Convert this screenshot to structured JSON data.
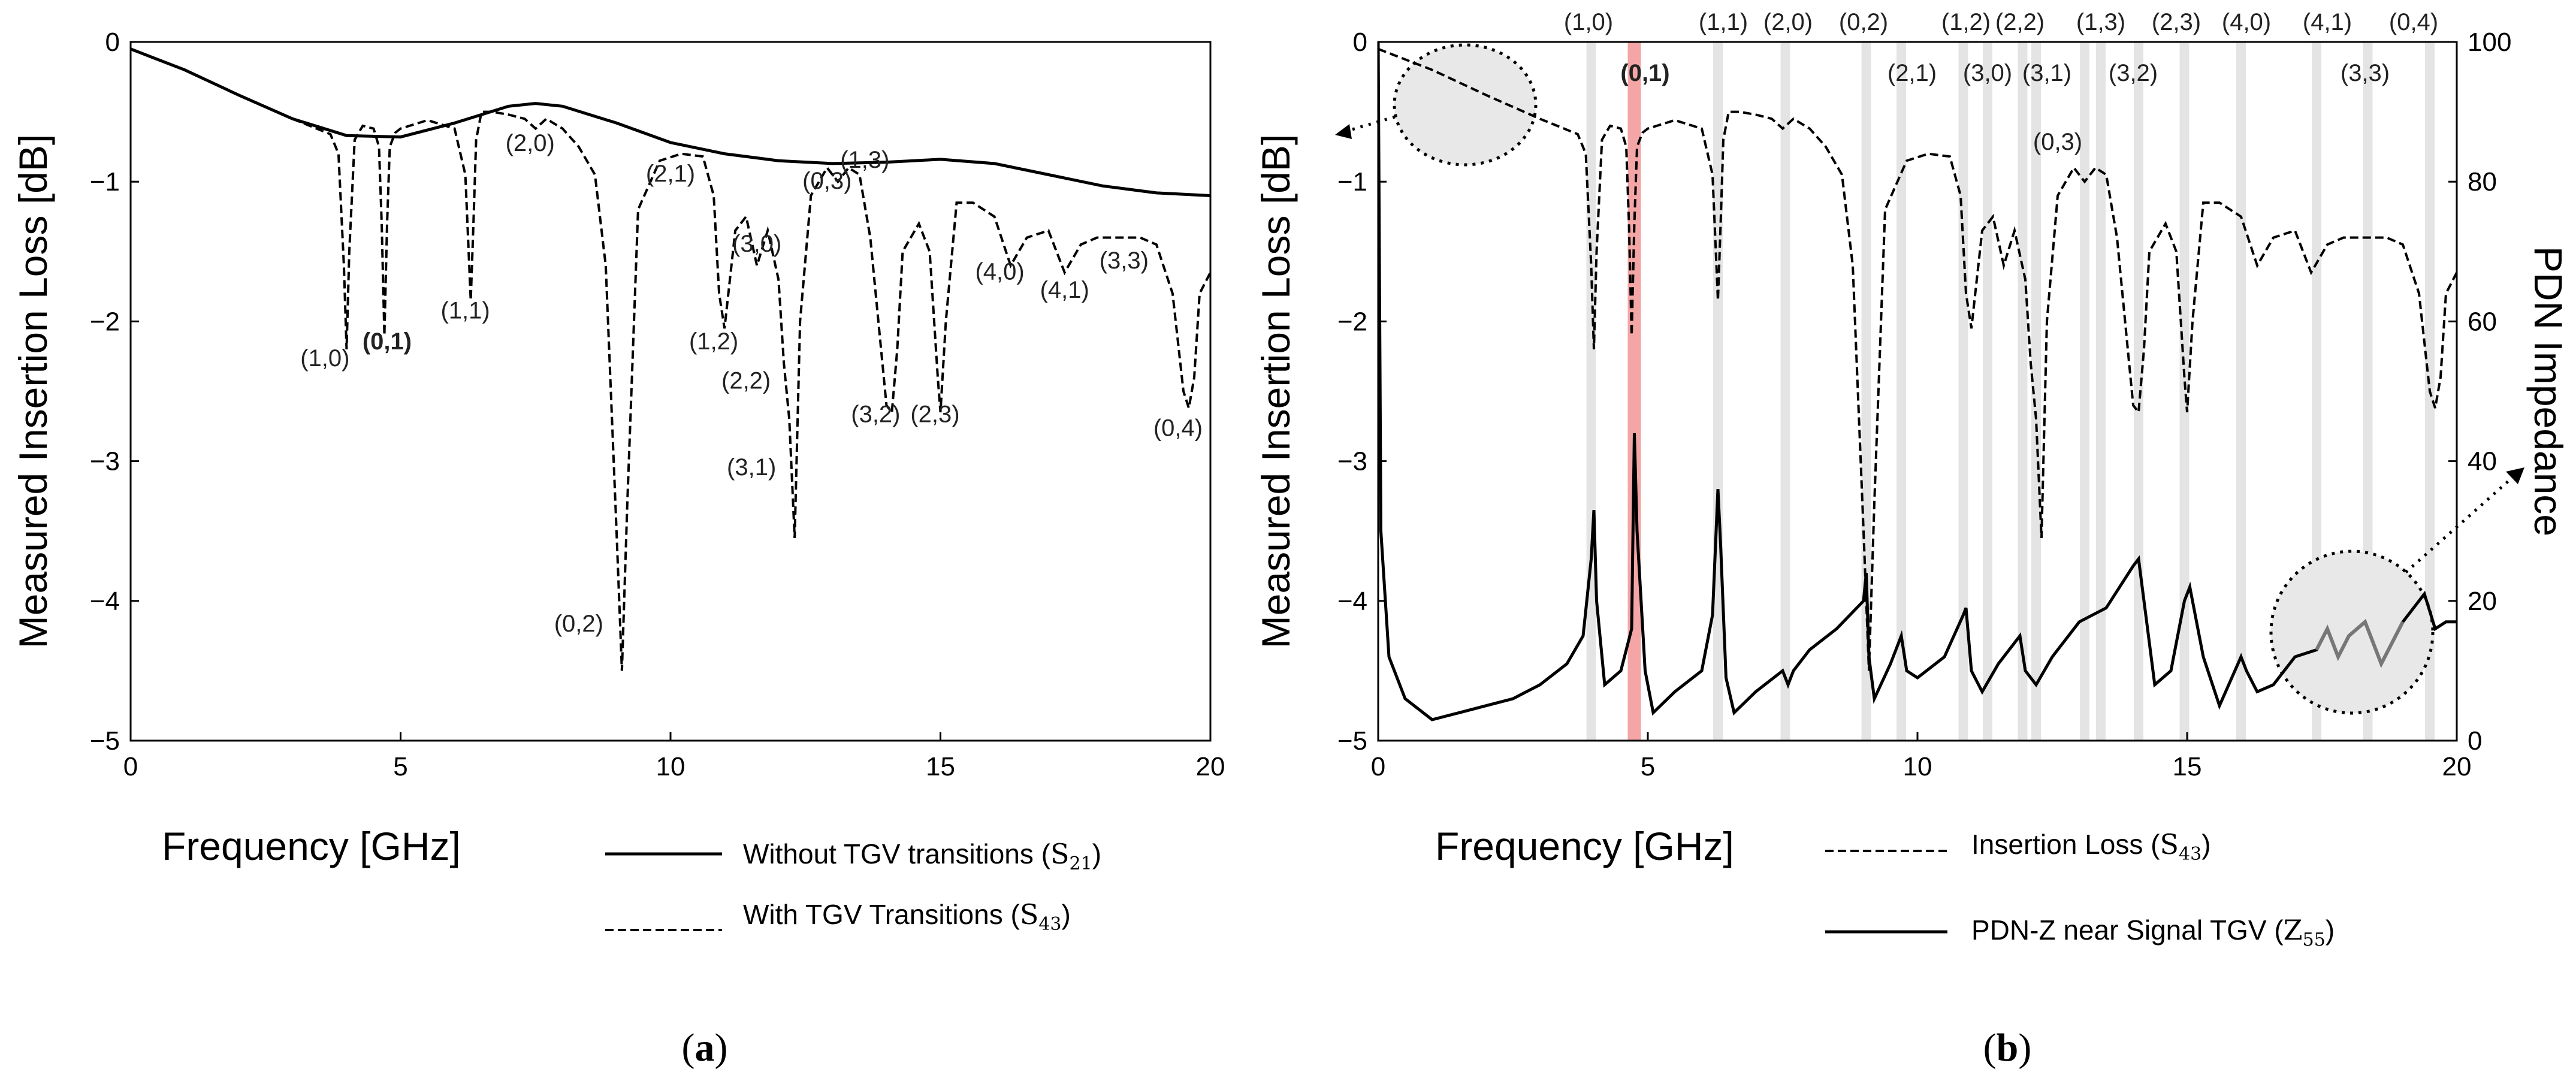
{
  "chart_data": [
    {
      "type": "line",
      "panel_caption_open": "(",
      "panel_caption_letter": "a",
      "panel_caption_close": ")",
      "xlabel": "Frequency [GHz]",
      "ylabel": "Measured Insertion Loss [dB]",
      "xlim": [
        0,
        20
      ],
      "ylim": [
        -5,
        0
      ],
      "xticks": [
        "0",
        "5",
        "10",
        "15",
        "20"
      ],
      "yticks": [
        "0",
        "−1",
        "−2",
        "−3",
        "−4",
        "−5"
      ],
      "series": [
        {
          "name": "Without TGV transitions (S21)",
          "legend_text": "Without TGV transitions (",
          "legend_sym": "S",
          "legend_sub": "21",
          "legend_close": ")",
          "style": "solid",
          "x": [
            0,
            1,
            2,
            3,
            4,
            5,
            6,
            7,
            7.5,
            8,
            9,
            10,
            11,
            12,
            13,
            14,
            15,
            16,
            17,
            18,
            19,
            20
          ],
          "y": [
            -0.05,
            -0.2,
            -0.38,
            -0.55,
            -0.67,
            -0.68,
            -0.58,
            -0.46,
            -0.44,
            -0.46,
            -0.58,
            -0.72,
            -0.8,
            -0.85,
            -0.87,
            -0.86,
            -0.84,
            -0.87,
            -0.95,
            -1.03,
            -1.08,
            -1.1
          ]
        },
        {
          "name": "With TGV Transitions (S43)",
          "legend_text": "With TGV Transitions (",
          "legend_sym": "S",
          "legend_sub": "43",
          "legend_close": ")",
          "style": "dashed",
          "x": [
            0,
            1,
            2,
            3,
            3.7,
            3.85,
            3.95,
            4.0,
            4.05,
            4.15,
            4.3,
            4.5,
            4.6,
            4.65,
            4.7,
            4.75,
            4.8,
            4.9,
            5.0,
            5.5,
            6.0,
            6.2,
            6.3,
            6.35,
            6.4,
            6.5,
            6.7,
            7.0,
            7.3,
            7.5,
            7.7,
            8.0,
            8.3,
            8.6,
            8.8,
            9.0,
            9.1,
            9.2,
            9.4,
            9.8,
            10.2,
            10.6,
            10.8,
            10.9,
            11.0,
            11.2,
            11.4,
            11.6,
            11.8,
            12.0,
            12.1,
            12.2,
            12.3,
            12.4,
            12.6,
            12.9,
            13.1,
            13.3,
            13.5,
            13.7,
            13.9,
            14.0,
            14.1,
            14.2,
            14.3,
            14.6,
            14.8,
            14.95,
            15.0,
            15.1,
            15.3,
            15.6,
            16.0,
            16.3,
            16.6,
            17.0,
            17.3,
            17.6,
            17.9,
            18.3,
            18.7,
            19.0,
            19.3,
            19.5,
            19.6,
            19.7,
            19.8,
            20.0
          ],
          "y": [
            -0.05,
            -0.2,
            -0.38,
            -0.55,
            -0.66,
            -0.8,
            -1.6,
            -2.2,
            -1.5,
            -0.7,
            -0.6,
            -0.62,
            -0.75,
            -1.3,
            -2.1,
            -1.3,
            -0.75,
            -0.65,
            -0.62,
            -0.56,
            -0.62,
            -0.95,
            -1.85,
            -1.3,
            -0.7,
            -0.5,
            -0.5,
            -0.52,
            -0.55,
            -0.62,
            -0.55,
            -0.62,
            -0.75,
            -0.95,
            -1.6,
            -3.5,
            -4.5,
            -3.3,
            -1.2,
            -0.85,
            -0.8,
            -0.82,
            -1.1,
            -1.8,
            -2.05,
            -1.35,
            -1.25,
            -1.6,
            -1.35,
            -1.7,
            -2.3,
            -2.7,
            -3.55,
            -2.0,
            -1.1,
            -0.9,
            -1.0,
            -0.9,
            -0.95,
            -1.4,
            -2.2,
            -2.6,
            -2.65,
            -2.2,
            -1.5,
            -1.3,
            -1.5,
            -2.4,
            -2.65,
            -2.0,
            -1.15,
            -1.15,
            -1.25,
            -1.6,
            -1.4,
            -1.35,
            -1.65,
            -1.45,
            -1.4,
            -1.4,
            -1.4,
            -1.45,
            -1.8,
            -2.5,
            -2.62,
            -2.4,
            -1.8,
            -1.65
          ]
        }
      ],
      "annotations": [
        {
          "text": "(1,0)",
          "x": 3.6,
          "y": -2.32
        },
        {
          "text": "(0,1)",
          "x": 4.75,
          "y": -2.2,
          "highlight": true
        },
        {
          "text": "(1,1)",
          "x": 6.2,
          "y": -1.98
        },
        {
          "text": "(2,0)",
          "x": 7.4,
          "y": -0.78
        },
        {
          "text": "(2,1)",
          "x": 10.0,
          "y": -1.0
        },
        {
          "text": "(3,0)",
          "x": 11.6,
          "y": -1.5
        },
        {
          "text": "(1,2)",
          "x": 10.8,
          "y": -2.2
        },
        {
          "text": "(0,3)",
          "x": 12.9,
          "y": -1.05
        },
        {
          "text": "(1,3)",
          "x": 13.6,
          "y": -0.9
        },
        {
          "text": "(2,2)",
          "x": 11.4,
          "y": -2.48
        },
        {
          "text": "(3,1)",
          "x": 11.5,
          "y": -3.1
        },
        {
          "text": "(3,2)",
          "x": 13.8,
          "y": -2.72
        },
        {
          "text": "(2,3)",
          "x": 14.9,
          "y": -2.72
        },
        {
          "text": "(4,0)",
          "x": 16.1,
          "y": -1.7
        },
        {
          "text": "(4,1)",
          "x": 17.3,
          "y": -1.83
        },
        {
          "text": "(3,3)",
          "x": 18.4,
          "y": -1.62
        },
        {
          "text": "(0,2)",
          "x": 8.3,
          "y": -4.22
        },
        {
          "text": "(0,4)",
          "x": 19.4,
          "y": -2.82
        }
      ]
    },
    {
      "type": "line",
      "panel_caption_open": "(",
      "panel_caption_letter": "b",
      "panel_caption_close": ")",
      "xlabel": "Frequency [GHz]",
      "ylabel": "Measured Insertion Loss [dB]",
      "ylabel_right": "PDN Impedance",
      "xlim": [
        0,
        20
      ],
      "ylim": [
        -5,
        0
      ],
      "ylim_right": [
        0,
        100
      ],
      "xticks": [
        "0",
        "5",
        "10",
        "15",
        "20"
      ],
      "yticks": [
        "0",
        "−1",
        "−2",
        "−3",
        "−4",
        "−5"
      ],
      "yticks_right": [
        "100",
        "80",
        "60",
        "40",
        "20",
        "0"
      ],
      "mode_bands": [
        3.95,
        4.75,
        6.3,
        7.55,
        9.05,
        9.7,
        10.85,
        11.3,
        11.95,
        12.2,
        13.1,
        13.4,
        14.1,
        14.95,
        16.0,
        17.4,
        18.35,
        19.5
      ],
      "highlight_band": 4.75,
      "top_labels": [
        {
          "text": "(1,0)",
          "x": 3.9,
          "row": 0
        },
        {
          "text": "(1,1)",
          "x": 6.4,
          "row": 0
        },
        {
          "text": "(2,0)",
          "x": 7.6,
          "row": 0
        },
        {
          "text": "(0,2)",
          "x": 9.0,
          "row": 0
        },
        {
          "text": "(1,2)",
          "x": 10.9,
          "row": 0
        },
        {
          "text": "(2,2)",
          "x": 11.9,
          "row": 0
        },
        {
          "text": "(1,3)",
          "x": 13.4,
          "row": 0
        },
        {
          "text": "(2,3)",
          "x": 14.8,
          "row": 0
        },
        {
          "text": "(4,0)",
          "x": 16.1,
          "row": 0
        },
        {
          "text": "(4,1)",
          "x": 17.6,
          "row": 0
        },
        {
          "text": "(0,4)",
          "x": 19.2,
          "row": 0
        },
        {
          "text": "(0,1)",
          "x": 4.95,
          "row": 1,
          "highlight": true
        },
        {
          "text": "(2,1)",
          "x": 9.9,
          "row": 1
        },
        {
          "text": "(3,0)",
          "x": 11.3,
          "row": 1
        },
        {
          "text": "(3,1)",
          "x": 12.4,
          "row": 1
        },
        {
          "text": "(3,2)",
          "x": 14.0,
          "row": 1
        },
        {
          "text": "(3,3)",
          "x": 18.3,
          "row": 1
        },
        {
          "text": "(0,3)",
          "x": 12.6,
          "row": 2
        }
      ],
      "series": [
        {
          "name": "Insertion Loss (S43)",
          "legend_text": "Insertion Loss (",
          "legend_sym": "S",
          "legend_sub": "43",
          "legend_close": ")",
          "style": "dashed",
          "axis": "left",
          "x": [
            0,
            1,
            2,
            3,
            3.7,
            3.85,
            3.95,
            4.0,
            4.05,
            4.15,
            4.3,
            4.5,
            4.6,
            4.65,
            4.7,
            4.75,
            4.8,
            4.9,
            5.0,
            5.5,
            6.0,
            6.2,
            6.3,
            6.35,
            6.4,
            6.5,
            6.7,
            7.0,
            7.3,
            7.5,
            7.7,
            8.0,
            8.3,
            8.6,
            8.8,
            9.0,
            9.1,
            9.2,
            9.4,
            9.8,
            10.2,
            10.6,
            10.8,
            10.9,
            11.0,
            11.2,
            11.4,
            11.6,
            11.8,
            12.0,
            12.1,
            12.2,
            12.3,
            12.4,
            12.6,
            12.9,
            13.1,
            13.3,
            13.5,
            13.7,
            13.9,
            14.0,
            14.1,
            14.2,
            14.3,
            14.6,
            14.8,
            14.95,
            15.0,
            15.1,
            15.3,
            15.6,
            16.0,
            16.3,
            16.6,
            17.0,
            17.3,
            17.6,
            17.9,
            18.3,
            18.7,
            19.0,
            19.3,
            19.5,
            19.6,
            19.7,
            19.8,
            20.0
          ],
          "y": [
            -0.05,
            -0.2,
            -0.38,
            -0.55,
            -0.66,
            -0.8,
            -1.6,
            -2.2,
            -1.5,
            -0.7,
            -0.6,
            -0.62,
            -0.75,
            -1.3,
            -2.1,
            -1.3,
            -0.75,
            -0.65,
            -0.62,
            -0.56,
            -0.62,
            -0.95,
            -1.85,
            -1.3,
            -0.7,
            -0.5,
            -0.5,
            -0.52,
            -0.55,
            -0.62,
            -0.55,
            -0.62,
            -0.75,
            -0.95,
            -1.6,
            -3.5,
            -4.5,
            -3.3,
            -1.2,
            -0.85,
            -0.8,
            -0.82,
            -1.1,
            -1.8,
            -2.05,
            -1.35,
            -1.25,
            -1.6,
            -1.35,
            -1.7,
            -2.3,
            -2.7,
            -3.55,
            -2.0,
            -1.1,
            -0.9,
            -1.0,
            -0.9,
            -0.95,
            -1.4,
            -2.2,
            -2.6,
            -2.65,
            -2.2,
            -1.5,
            -1.3,
            -1.5,
            -2.4,
            -2.65,
            -2.0,
            -1.15,
            -1.15,
            -1.25,
            -1.6,
            -1.4,
            -1.35,
            -1.65,
            -1.45,
            -1.4,
            -1.4,
            -1.4,
            -1.45,
            -1.8,
            -2.5,
            -2.62,
            -2.4,
            -1.8,
            -1.65
          ]
        },
        {
          "name": "PDN-Z near Signal TGV (Z55)",
          "legend_text": "PDN-Z near Signal TGV (",
          "legend_sym": "Z",
          "legend_sub": "55",
          "legend_close": ")",
          "style": "solid",
          "axis": "right",
          "x": [
            0,
            0.05,
            0.2,
            0.5,
            1.0,
            1.5,
            2.0,
            2.5,
            3.0,
            3.5,
            3.8,
            3.95,
            4.0,
            4.05,
            4.2,
            4.5,
            4.7,
            4.75,
            4.8,
            4.95,
            5.1,
            5.5,
            6.0,
            6.2,
            6.3,
            6.35,
            6.45,
            6.6,
            7.0,
            7.5,
            7.6,
            7.7,
            8.0,
            8.5,
            9.0,
            9.05,
            9.1,
            9.2,
            9.5,
            9.7,
            9.8,
            10.0,
            10.5,
            10.85,
            10.9,
            11.0,
            11.2,
            11.5,
            11.9,
            12.0,
            12.2,
            12.5,
            13.0,
            13.5,
            14.0,
            14.1,
            14.2,
            14.4,
            14.7,
            14.95,
            15.05,
            15.3,
            15.6,
            16.0,
            16.1,
            16.3,
            16.6,
            17.0,
            17.4,
            17.6,
            17.8,
            18.0,
            18.3,
            18.6,
            19.0,
            19.4,
            19.6,
            19.8,
            20.0
          ],
          "y": [
            100,
            30,
            12,
            6,
            3,
            4,
            5,
            6,
            8,
            11,
            15,
            26,
            33,
            20,
            8,
            10,
            16,
            44,
            30,
            10,
            4,
            7,
            10,
            18,
            36,
            28,
            9,
            4,
            7,
            10,
            8,
            10,
            13,
            16,
            20,
            24,
            12,
            6,
            11,
            15,
            10,
            9,
            12,
            18,
            19,
            10,
            7,
            11,
            15,
            10,
            8,
            12,
            17,
            19,
            25,
            26,
            20,
            8,
            10,
            20,
            22,
            12,
            5,
            12,
            10,
            7,
            8,
            12,
            13,
            16,
            12,
            15,
            17,
            11,
            17,
            21,
            16,
            17,
            17
          ]
        }
      ]
    }
  ]
}
